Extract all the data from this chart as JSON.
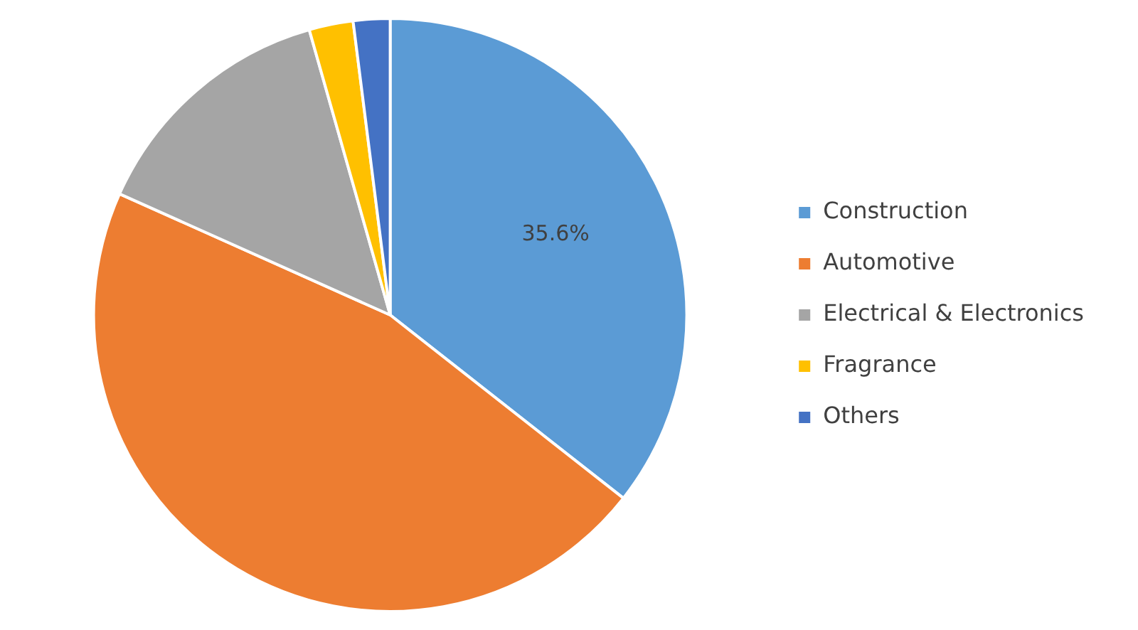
{
  "chart_data": {
    "type": "pie",
    "categories": [
      "Construction",
      "Automotive",
      "Electrical & Electronics",
      "Fragrance",
      "Others"
    ],
    "values": [
      35.6,
      46.1,
      13.9,
      2.4,
      2.0
    ],
    "colors": [
      "#5b9bd5",
      "#ed7d31",
      "#a5a5a5",
      "#ffc000",
      "#4472c4"
    ],
    "value_labels": [
      "35.6%",
      null,
      null,
      null,
      null
    ],
    "legend": "right"
  }
}
